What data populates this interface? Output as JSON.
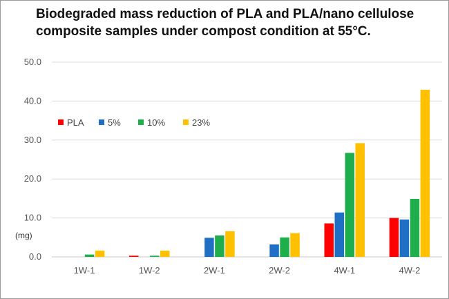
{
  "chart_data": {
    "type": "bar",
    "title_lines": [
      "Biodegraded mass reduction of PLA and PLA/nano cellulose",
      "composite samples under compost condition at 55°C."
    ],
    "ylabel": "(mg)",
    "xlabel": "",
    "ylim": [
      0,
      50
    ],
    "yticks": [
      "0.0",
      "10.0",
      "20.0",
      "30.0",
      "40.0",
      "50.0"
    ],
    "grid": true,
    "legend_position": "upper-left",
    "categories": [
      "1W-1",
      "1W-2",
      "2W-1",
      "2W-2",
      "4W-1",
      "4W-2"
    ],
    "series": [
      {
        "name": "PLA",
        "color": "#ff0000",
        "values": [
          0.0,
          0.3,
          0.0,
          0.0,
          8.6,
          10.0
        ]
      },
      {
        "name": "5%",
        "color": "#1f6fc4",
        "values": [
          0.0,
          0.0,
          4.9,
          3.2,
          11.4,
          9.6
        ]
      },
      {
        "name": "10%",
        "color": "#1eaf4c",
        "values": [
          0.6,
          0.3,
          5.5,
          5.0,
          26.7,
          14.9
        ]
      },
      {
        "name": "23%",
        "color": "#ffc000",
        "values": [
          1.6,
          1.6,
          6.6,
          6.1,
          29.2,
          42.9
        ]
      }
    ]
  }
}
